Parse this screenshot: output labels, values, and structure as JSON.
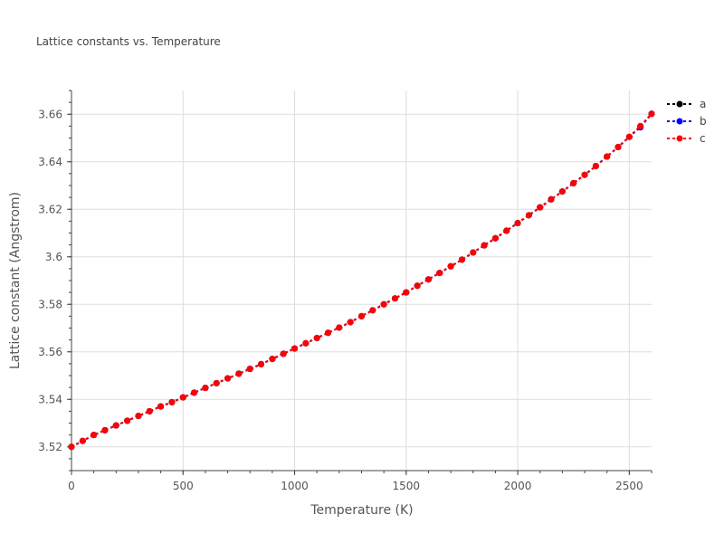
{
  "chart_data": {
    "type": "line",
    "title": "Lattice constants vs. Temperature",
    "xlabel": "Temperature (K)",
    "ylabel": "Lattice constant (Angstrom)",
    "xlim": [
      0,
      2600
    ],
    "ylim": [
      3.51,
      3.67
    ],
    "xticks": [
      0,
      500,
      1000,
      1500,
      2000,
      2500
    ],
    "xtick_labels": [
      "0",
      "500",
      "1000",
      "1500",
      "2000",
      "2500"
    ],
    "yticks": [
      3.52,
      3.54,
      3.56,
      3.58,
      3.6,
      3.62,
      3.64,
      3.66
    ],
    "ytick_labels": [
      "3.52",
      "3.54",
      "3.56",
      "3.58",
      "3.6",
      "3.62",
      "3.64",
      "3.66"
    ],
    "grid": true,
    "legend_position": "top-right",
    "x": [
      0,
      50,
      100,
      150,
      200,
      250,
      300,
      350,
      400,
      450,
      500,
      550,
      600,
      650,
      700,
      750,
      800,
      850,
      900,
      950,
      1000,
      1050,
      1100,
      1150,
      1200,
      1250,
      1300,
      1350,
      1400,
      1450,
      1500,
      1550,
      1600,
      1650,
      1700,
      1750,
      1800,
      1850,
      1900,
      1950,
      2000,
      2050,
      2100,
      2150,
      2200,
      2250,
      2300,
      2350,
      2400,
      2450,
      2500,
      2550,
      2600
    ],
    "series": [
      {
        "name": "a",
        "color": "#000000",
        "values": [
          3.52,
          3.5225,
          3.525,
          3.527,
          3.529,
          3.531,
          3.533,
          3.535,
          3.537,
          3.5388,
          3.5408,
          3.5428,
          3.5448,
          3.5468,
          3.5488,
          3.5508,
          3.5528,
          3.5548,
          3.557,
          3.5592,
          3.5614,
          3.5636,
          3.5658,
          3.568,
          3.5702,
          3.5725,
          3.575,
          3.5775,
          3.58,
          3.5825,
          3.585,
          3.5878,
          3.5905,
          3.5932,
          3.596,
          3.5988,
          3.6018,
          3.6048,
          3.6078,
          3.611,
          3.6142,
          3.6175,
          3.6208,
          3.6242,
          3.6275,
          3.631,
          3.6345,
          3.6382,
          3.6422,
          3.6462,
          3.6505,
          3.655,
          3.6602
        ]
      },
      {
        "name": "b",
        "color": "#0000ff",
        "values": [
          3.52,
          3.5225,
          3.525,
          3.527,
          3.529,
          3.531,
          3.533,
          3.535,
          3.537,
          3.5388,
          3.5408,
          3.5428,
          3.5448,
          3.5468,
          3.5488,
          3.5508,
          3.5528,
          3.5548,
          3.557,
          3.5592,
          3.5614,
          3.5636,
          3.5658,
          3.568,
          3.5702,
          3.5725,
          3.575,
          3.5775,
          3.58,
          3.5825,
          3.585,
          3.5878,
          3.5905,
          3.5932,
          3.596,
          3.5988,
          3.6018,
          3.6048,
          3.6078,
          3.611,
          3.6142,
          3.6175,
          3.6208,
          3.6242,
          3.6275,
          3.631,
          3.6345,
          3.6382,
          3.6422,
          3.6462,
          3.6505,
          3.6545,
          3.6602
        ]
      },
      {
        "name": "c",
        "color": "#ff0000",
        "values": [
          3.52,
          3.5225,
          3.525,
          3.527,
          3.529,
          3.531,
          3.533,
          3.535,
          3.537,
          3.5388,
          3.5408,
          3.5428,
          3.5448,
          3.5468,
          3.5488,
          3.5508,
          3.5528,
          3.5548,
          3.557,
          3.5592,
          3.5614,
          3.5636,
          3.5658,
          3.568,
          3.5702,
          3.5725,
          3.575,
          3.5775,
          3.58,
          3.5825,
          3.585,
          3.5878,
          3.5905,
          3.5932,
          3.596,
          3.5988,
          3.6018,
          3.6048,
          3.6078,
          3.611,
          3.6142,
          3.6175,
          3.6208,
          3.6242,
          3.6275,
          3.631,
          3.6345,
          3.6382,
          3.6422,
          3.6462,
          3.6505,
          3.655,
          3.6602
        ]
      }
    ]
  }
}
